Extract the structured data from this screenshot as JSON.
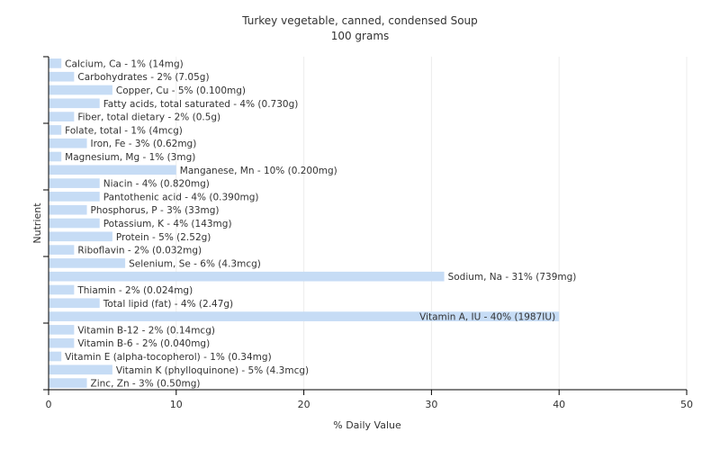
{
  "chart_data": {
    "type": "bar",
    "orientation": "horizontal",
    "title": "Turkey vegetable, canned, condensed Soup",
    "subtitle": "100 grams",
    "xlabel": "% Daily Value",
    "ylabel": "Nutrient",
    "xlim": [
      0,
      50
    ],
    "xticks": [
      0,
      10,
      20,
      30,
      40,
      50
    ],
    "grid": true,
    "bar_color": "#c6dcf5",
    "categories": [
      "Calcium, Ca",
      "Carbohydrates",
      "Copper, Cu",
      "Fatty acids, total saturated",
      "Fiber, total dietary",
      "Folate, total",
      "Iron, Fe",
      "Magnesium, Mg",
      "Manganese, Mn",
      "Niacin",
      "Pantothenic acid",
      "Phosphorus, P",
      "Potassium, K",
      "Protein",
      "Riboflavin",
      "Selenium, Se",
      "Sodium, Na",
      "Thiamin",
      "Total lipid (fat)",
      "Vitamin A, IU",
      "Vitamin B-12",
      "Vitamin B-6",
      "Vitamin E (alpha-tocopherol)",
      "Vitamin K (phylloquinone)",
      "Zinc, Zn"
    ],
    "values": [
      1,
      2,
      5,
      4,
      2,
      1,
      3,
      1,
      10,
      4,
      4,
      3,
      4,
      5,
      2,
      6,
      31,
      2,
      4,
      40,
      2,
      2,
      1,
      5,
      3
    ],
    "labels": [
      "Calcium, Ca - 1% (14mg)",
      "Carbohydrates - 2% (7.05g)",
      "Copper, Cu - 5% (0.100mg)",
      "Fatty acids, total saturated - 4% (0.730g)",
      "Fiber, total dietary - 2% (0.5g)",
      "Folate, total - 1% (4mcg)",
      "Iron, Fe - 3% (0.62mg)",
      "Magnesium, Mg - 1% (3mg)",
      "Manganese, Mn - 10% (0.200mg)",
      "Niacin - 4% (0.820mg)",
      "Pantothenic acid - 4% (0.390mg)",
      "Phosphorus, P - 3% (33mg)",
      "Potassium, K - 4% (143mg)",
      "Protein - 5% (2.52g)",
      "Riboflavin - 2% (0.032mg)",
      "Selenium, Se - 6% (4.3mcg)",
      "Sodium, Na - 31% (739mg)",
      "Thiamin - 2% (0.024mg)",
      "Total lipid (fat) - 4% (2.47g)",
      "Vitamin A, IU - 40% (1987IU)",
      "Vitamin B-12 - 2% (0.14mcg)",
      "Vitamin B-6 - 2% (0.040mg)",
      "Vitamin E (alpha-tocopherol) - 1% (0.34mg)",
      "Vitamin K (phylloquinone) - 5% (4.3mcg)",
      "Zinc, Zn - 3% (0.50mg)"
    ]
  }
}
